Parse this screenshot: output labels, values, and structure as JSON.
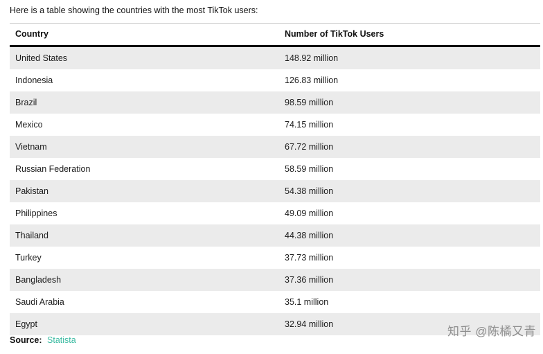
{
  "intro_text": "Here is a table showing the countries with the most TikTok users:",
  "table": {
    "headers": {
      "country": "Country",
      "users": "Number of TikTok Users"
    },
    "rows": [
      {
        "country": "United States",
        "users": "148.92 million"
      },
      {
        "country": "Indonesia",
        "users": "126.83 million"
      },
      {
        "country": "Brazil",
        "users": "98.59 million"
      },
      {
        "country": "Mexico",
        "users": "74.15 million"
      },
      {
        "country": "Vietnam",
        "users": "67.72 million"
      },
      {
        "country": "Russian Federation",
        "users": "58.59 million"
      },
      {
        "country": "Pakistan",
        "users": "54.38 million"
      },
      {
        "country": "Philippines",
        "users": "49.09 million"
      },
      {
        "country": "Thailand",
        "users": "44.38 million"
      },
      {
        "country": "Turkey",
        "users": "37.73 million"
      },
      {
        "country": "Bangladesh",
        "users": "37.36 million"
      },
      {
        "country": "Saudi Arabia",
        "users": "35.1 million"
      },
      {
        "country": "Egypt",
        "users": "32.94 million"
      }
    ]
  },
  "source": {
    "label": "Source:",
    "link_text": "Statista"
  },
  "watermark_text": "知乎 @陈橘又青",
  "colors": {
    "row_alt_background": "#ebebeb",
    "header_rule": "#0d0d0d",
    "source_link": "#3cbba2",
    "watermark": "#8e8e8e"
  }
}
